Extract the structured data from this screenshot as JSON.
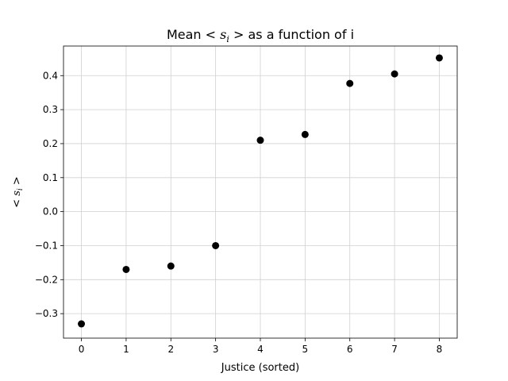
{
  "chart_data": {
    "type": "scatter",
    "title": {
      "prefix": "Mean ",
      "symbol_left": "< ",
      "symbol_var": "s",
      "symbol_sub": "i",
      "symbol_right": " >",
      "suffix": "  as a function of i"
    },
    "xlabel": "Justice (sorted)",
    "ylabel": {
      "left": "< ",
      "var": "s",
      "sub": "i",
      "right": " >"
    },
    "x": [
      0,
      1,
      2,
      3,
      4,
      5,
      6,
      7,
      8
    ],
    "y": [
      -0.33,
      -0.17,
      -0.16,
      -0.1,
      0.21,
      0.227,
      0.377,
      0.405,
      0.452
    ],
    "xlim": [
      -0.4,
      8.4
    ],
    "ylim": [
      -0.372,
      0.487
    ],
    "xticks": [
      0,
      1,
      2,
      3,
      4,
      5,
      6,
      7,
      8
    ],
    "xtick_labels": [
      "0",
      "1",
      "2",
      "3",
      "4",
      "5",
      "6",
      "7",
      "8"
    ],
    "yticks": [
      -0.3,
      -0.2,
      -0.1,
      0.0,
      0.1,
      0.2,
      0.3,
      0.4
    ],
    "ytick_labels": [
      "−0.3",
      "−0.2",
      "−0.1",
      "0.0",
      "0.1",
      "0.2",
      "0.3",
      "0.4"
    ],
    "grid": true,
    "marker_color": "#000000",
    "grid_color": "#d0d0d0"
  }
}
